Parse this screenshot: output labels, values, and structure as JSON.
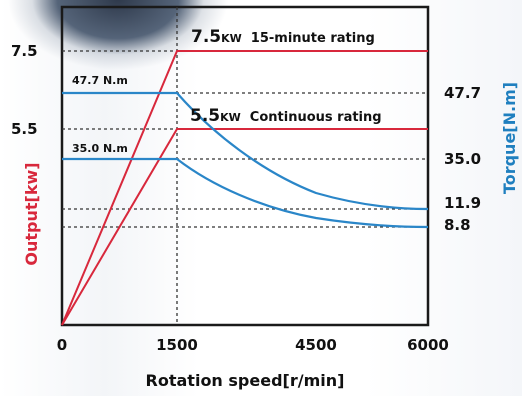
{
  "chart_data": {
    "type": "line",
    "xlabel": "Rotation speed[r/min]",
    "ylabel_left": "Output[kw]",
    "ylabel_right": "Torque[N.m]",
    "xlim": [
      0,
      6000
    ],
    "x_ticks": [
      "0",
      "1500",
      "4500",
      "6000"
    ],
    "left_ticks": [
      "7.5",
      "5.5"
    ],
    "right_ticks": [
      "47.7",
      "35.0",
      "11.9",
      "8.8"
    ],
    "output_series": [
      {
        "name": "15-minute rating",
        "x": [
          0,
          1500,
          6000
        ],
        "y": [
          0,
          7.5,
          7.5
        ]
      },
      {
        "name": "Continuous rating",
        "x": [
          0,
          1500,
          6000
        ],
        "y": [
          0,
          5.5,
          5.5
        ]
      }
    ],
    "torque_series": [
      {
        "name": "15-minute rating",
        "x": [
          0,
          1500,
          6000
        ],
        "y": [
          47.7,
          47.7,
          11.9
        ]
      },
      {
        "name": "Continuous rating",
        "x": [
          0,
          1500,
          6000
        ],
        "y": [
          35.0,
          35.0,
          8.8
        ]
      }
    ],
    "annotations": {
      "out_15": {
        "value": "7.5",
        "unit": "KW",
        "text": "15-minute rating"
      },
      "out_cont": {
        "value": "5.5",
        "unit": "KW",
        "text": "Continuous rating"
      },
      "torque_15": "47.7 N.m",
      "torque_cont": "35.0 N.m"
    },
    "colors": {
      "output": "#d8283c",
      "torque": "#2a86c8",
      "axis": "#1a1a1a",
      "grid": "#333333"
    }
  }
}
